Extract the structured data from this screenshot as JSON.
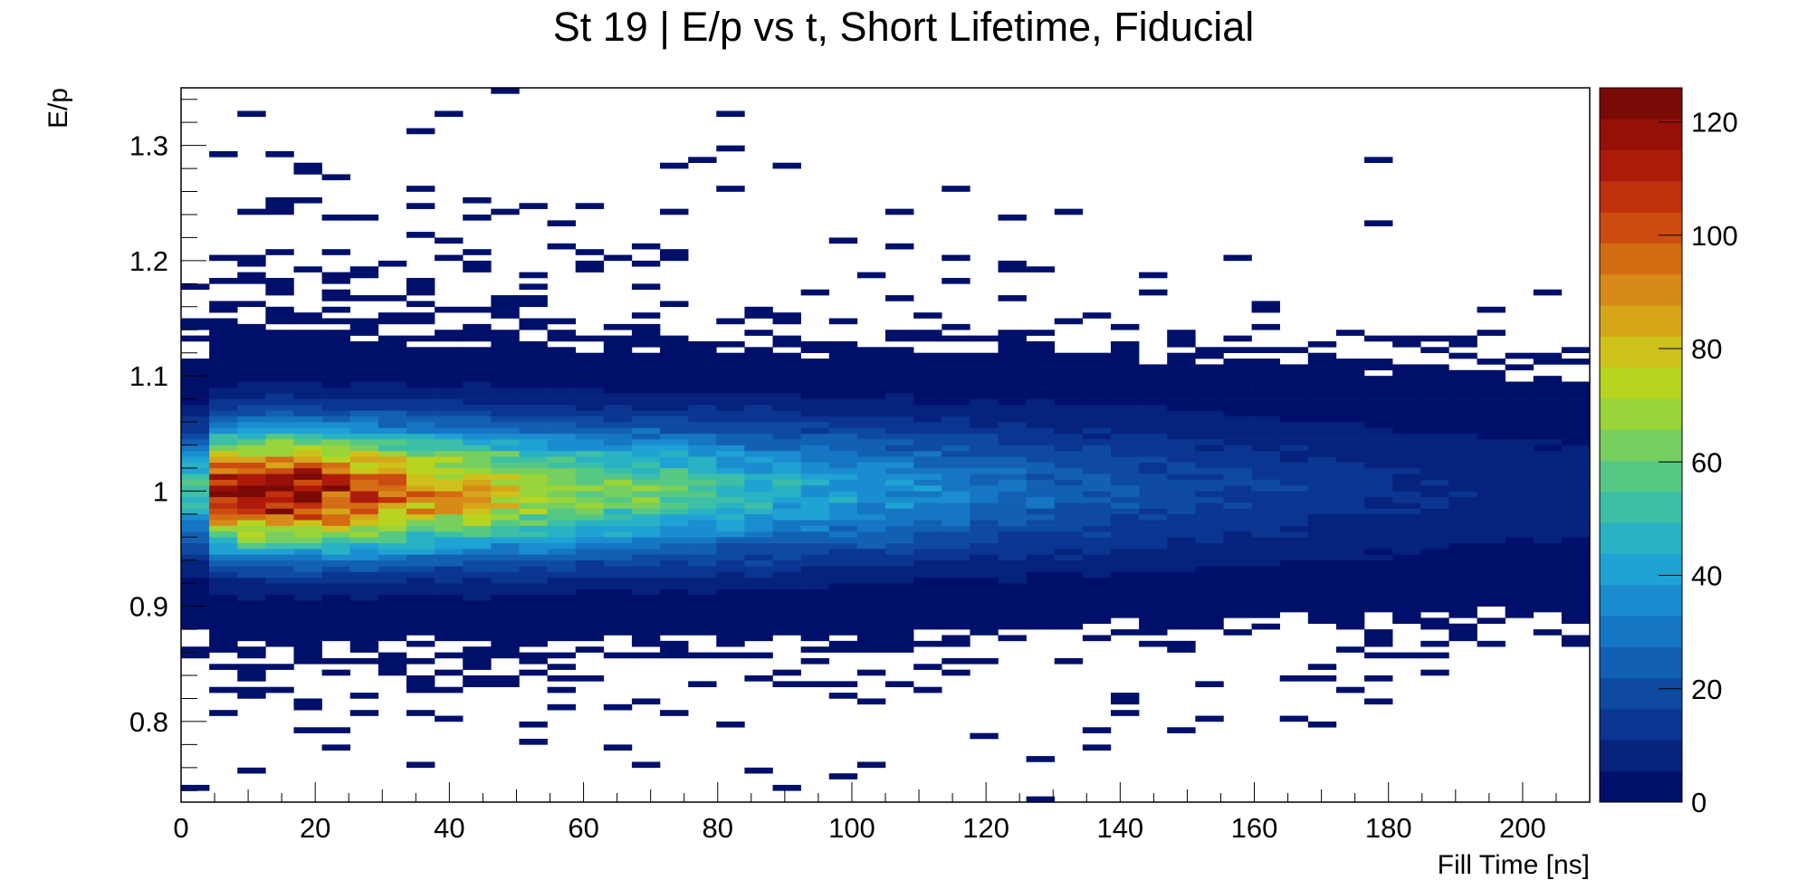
{
  "chart_data": {
    "type": "heatmap",
    "title": "St 19 | E/p vs t, Short Lifetime, Fiducial",
    "xlabel": "Fill Time [ns]",
    "ylabel": "E/p",
    "xlim": [
      0,
      210
    ],
    "ylim": [
      0.73,
      1.35
    ],
    "zlim": [
      0,
      126
    ],
    "x_ticks": [
      0,
      20,
      40,
      60,
      80,
      100,
      120,
      140,
      160,
      180,
      200
    ],
    "x_tick_labels": [
      "0",
      "20",
      "40",
      "60",
      "80",
      "100",
      "120",
      "140",
      "160",
      "180",
      "200"
    ],
    "y_ticks": [
      0.8,
      0.9,
      1.0,
      1.1,
      1.2,
      1.3
    ],
    "y_tick_labels": [
      "0.8",
      "0.9",
      "1",
      "1.1",
      "1.2",
      "1.3"
    ],
    "colorbar_ticks": [
      0,
      20,
      40,
      60,
      80,
      100,
      120
    ],
    "colorbar_tick_labels": [
      "0",
      "20",
      "40",
      "60",
      "80",
      "100",
      "120"
    ],
    "grid": false,
    "bins": {
      "x_bin_width_ns": 4.2,
      "y_bin_width": 0.005
    },
    "description": "2D histogram of E/p vs fill time; counts peak near E/p=1.0 at early fill times (~5-20 ns) reaching ~115 and decay with time, band broadening slightly.",
    "peak": {
      "x": 12,
      "y": 1.0,
      "count": 118
    },
    "profile_samples": [
      {
        "x": 5,
        "peak_count": 105,
        "sigma_y": 0.035
      },
      {
        "x": 15,
        "peak_count": 118,
        "sigma_y": 0.036
      },
      {
        "x": 25,
        "peak_count": 100,
        "sigma_y": 0.037
      },
      {
        "x": 40,
        "peak_count": 82,
        "sigma_y": 0.038
      },
      {
        "x": 60,
        "peak_count": 62,
        "sigma_y": 0.039
      },
      {
        "x": 80,
        "peak_count": 48,
        "sigma_y": 0.04
      },
      {
        "x": 100,
        "peak_count": 38,
        "sigma_y": 0.041
      },
      {
        "x": 120,
        "peak_count": 28,
        "sigma_y": 0.042
      },
      {
        "x": 140,
        "peak_count": 20,
        "sigma_y": 0.043
      },
      {
        "x": 160,
        "peak_count": 15,
        "sigma_y": 0.044
      },
      {
        "x": 180,
        "peak_count": 11,
        "sigma_y": 0.045
      },
      {
        "x": 200,
        "peak_count": 8,
        "sigma_y": 0.046
      }
    ],
    "palette": [
      "#00106a",
      "#05227c",
      "#0a3590",
      "#0e4aa2",
      "#1260b4",
      "#1576c4",
      "#1a8dd0",
      "#1fa2d4",
      "#28b2c4",
      "#3cbfa6",
      "#56c884",
      "#76cf5e",
      "#98d43a",
      "#b8d420",
      "#cec21a",
      "#d6a61a",
      "#d88a18",
      "#d46c14",
      "#cc4c10",
      "#c0300c",
      "#ae1a0a",
      "#961008",
      "#7a0a06"
    ]
  }
}
